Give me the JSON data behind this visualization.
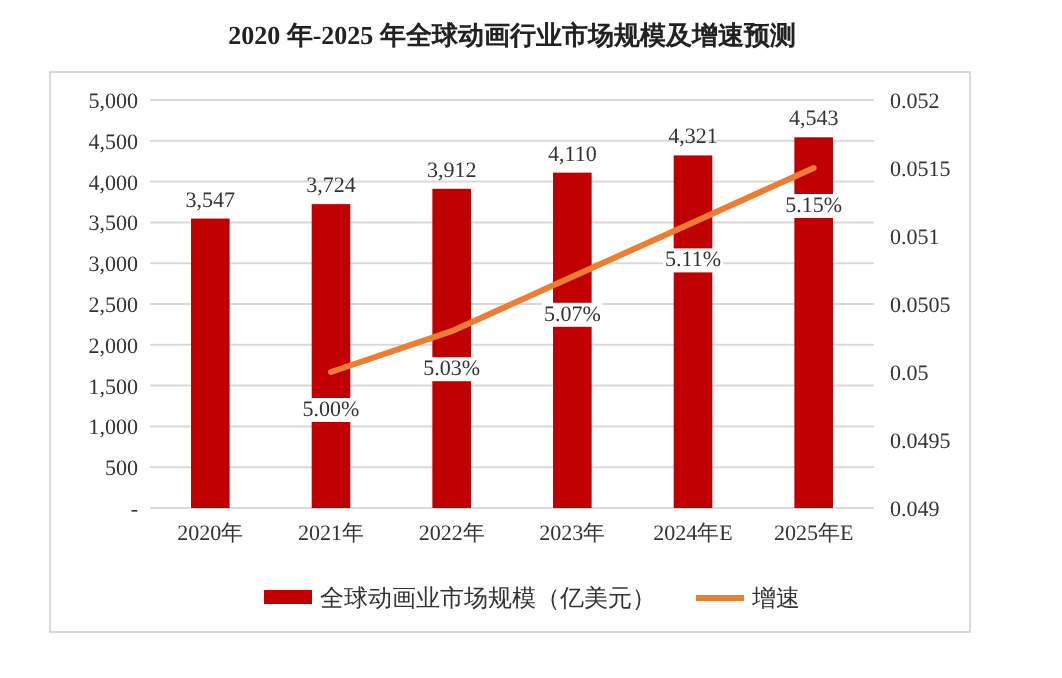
{
  "chart_data": {
    "type": "bar",
    "title": "2020 年-2025 年全球动画行业市场规模及增速预测",
    "categories": [
      "2020年",
      "2021年",
      "2022年",
      "2023年",
      "2024年E",
      "2025年E"
    ],
    "series": [
      {
        "name": "全球动画业市场规模（亿美元）",
        "color": "#c00000",
        "values": [
          3547,
          3724,
          3912,
          4110,
          4321,
          4543
        ],
        "value_labels": [
          "3,547",
          "3,724",
          "3,912",
          "4,110",
          "4,321",
          "4,543"
        ]
      },
      {
        "name": "增速",
        "type": "line",
        "axis": "y2",
        "color": "#ed7d31",
        "marker": "none",
        "line_style": "solid",
        "values": [
          null,
          0.05,
          0.0503,
          0.0507,
          0.0511,
          0.0515
        ],
        "value_labels": [
          null,
          "5.00%",
          "5.03%",
          "5.07%",
          "5.11%",
          "5.15%"
        ]
      }
    ],
    "ylim": [
      0,
      5000
    ],
    "yticks": [
      {
        "value": 0,
        "label": "-"
      },
      {
        "value": 500,
        "label": "500"
      },
      {
        "value": 1000,
        "label": "1,000"
      },
      {
        "value": 1500,
        "label": "1,500"
      },
      {
        "value": 2000,
        "label": "2,000"
      },
      {
        "value": 2500,
        "label": "2,500"
      },
      {
        "value": 3000,
        "label": "3,000"
      },
      {
        "value": 3500,
        "label": "3,500"
      },
      {
        "value": 4000,
        "label": "4,000"
      },
      {
        "value": 4500,
        "label": "4,500"
      },
      {
        "value": 5000,
        "label": "5,000"
      }
    ],
    "y2lim": [
      0.049,
      0.052
    ],
    "y2ticks": [
      0.049,
      0.0495,
      0.05,
      0.0505,
      0.051,
      0.0515,
      0.052
    ],
    "grid": "y",
    "legend": "bottom"
  }
}
